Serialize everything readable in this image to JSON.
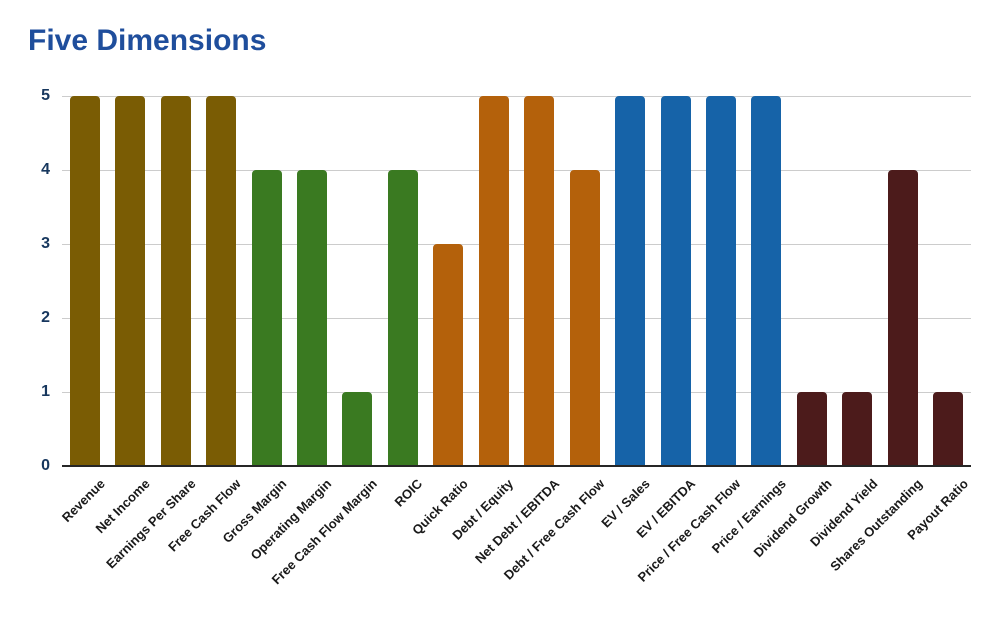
{
  "page": {
    "title": "Five Dimensions",
    "title_color": "#1F4E9C",
    "background_color": "#FFFFFF"
  },
  "chart_data": {
    "type": "bar",
    "title": "Five Dimensions",
    "categories": [
      "Revenue",
      "Net Income",
      "Earnings Per Share",
      "Free Cash Flow",
      "Gross Margin",
      "Operating Margin",
      "Free Cash Flow Margin",
      "ROIC",
      "Quick Ratio",
      "Debt / Equity",
      "Net Debt / EBITDA",
      "Debt / Free Cash Flow",
      "EV / Sales",
      "EV / EBITDA",
      "Price / Free Cash Flow",
      "Price / Earnings",
      "Dividend Growth",
      "Dividend Yield",
      "Shares Outstanding",
      "Payout Ratio"
    ],
    "values": [
      5,
      5,
      5,
      5,
      4,
      4,
      1,
      4,
      3,
      5,
      5,
      4,
      5,
      5,
      5,
      5,
      1,
      1,
      4,
      1
    ],
    "bar_colors": [
      "#7A5C04",
      "#7A5C04",
      "#7A5C04",
      "#7A5C04",
      "#3A7A21",
      "#3A7A21",
      "#3A7A21",
      "#3A7A21",
      "#B4610B",
      "#B4610B",
      "#B4610B",
      "#B4610B",
      "#1663A8",
      "#1663A8",
      "#1663A8",
      "#1663A8",
      "#4C1B1B",
      "#4C1B1B",
      "#4C1B1B",
      "#4C1B1B"
    ],
    "color_groups": [
      {
        "color": "#7A5C04",
        "categories": [
          "Revenue",
          "Net Income",
          "Earnings Per Share",
          "Free Cash Flow"
        ]
      },
      {
        "color": "#3A7A21",
        "categories": [
          "Gross Margin",
          "Operating Margin",
          "Free Cash Flow Margin",
          "ROIC"
        ]
      },
      {
        "color": "#B4610B",
        "categories": [
          "Quick Ratio",
          "Debt / Equity",
          "Net Debt / EBITDA",
          "Debt / Free Cash Flow"
        ]
      },
      {
        "color": "#1663A8",
        "categories": [
          "EV / Sales",
          "EV / EBITDA",
          "Price / Free Cash Flow",
          "Price / Earnings"
        ]
      },
      {
        "color": "#4C1B1B",
        "categories": [
          "Dividend Growth",
          "Dividend Yield",
          "Shares Outstanding",
          "Payout Ratio"
        ]
      }
    ],
    "xlabel": "",
    "ylabel": "",
    "ylim": [
      0,
      5
    ],
    "yticks": [
      0,
      1,
      2,
      3,
      4,
      5
    ],
    "ytick_color": "#17375E",
    "xtick_color": "#1A1A1A",
    "grid": true,
    "gridline_color": "#CCCCCC",
    "axis_line_color": "#262626",
    "legend": false
  }
}
